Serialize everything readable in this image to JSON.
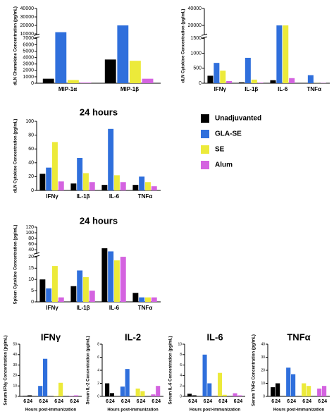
{
  "chart_data": [
    {
      "type": "bar",
      "y_label": "dLN Chemokine Concentration (pg/mL)",
      "categories": [
        "MIP-1α",
        "MIP-1β"
      ],
      "series": [
        {
          "name": "Unadjuvanted",
          "color": "#000000",
          "values": [
            700,
            3700
          ]
        },
        {
          "name": "GLA-SE",
          "color": "#2f6fdc",
          "values": [
            12000,
            20000
          ]
        },
        {
          "name": "SE",
          "color": "#ecea3a",
          "values": [
            500,
            3500
          ]
        },
        {
          "name": "Alum",
          "color": "#d463e0",
          "values": [
            100,
            700
          ]
        }
      ],
      "ylim": [
        0,
        40000
      ],
      "axis_break": [
        7000,
        10000
      ],
      "yticks": [
        0,
        1000,
        2000,
        3000,
        4000,
        5000,
        6000,
        7000,
        10000,
        20000,
        30000,
        40000
      ]
    },
    {
      "type": "bar",
      "y_label": "dLN Cytokine Concentration (pg/mL)",
      "categories": [
        "IFNγ",
        "IL-1β",
        "IL-6",
        "TNFα"
      ],
      "series": [
        {
          "name": "Unadjuvanted",
          "color": "#000000",
          "values": [
            250,
            30,
            100,
            10
          ]
        },
        {
          "name": "GLA-SE",
          "color": "#2f6fdc",
          "values": [
            680,
            850,
            20000,
            270
          ]
        },
        {
          "name": "SE",
          "color": "#ecea3a",
          "values": [
            420,
            120,
            20000,
            5
          ]
        },
        {
          "name": "Alum",
          "color": "#d463e0",
          "values": [
            70,
            20,
            170,
            10
          ]
        }
      ],
      "ylim": [
        0,
        40000
      ],
      "axis_break": [
        1500,
        10000
      ],
      "yticks": [
        0,
        500,
        1000,
        1500,
        20000,
        40000
      ]
    },
    {
      "type": "bar",
      "title": "24 hours",
      "y_label": "dLN Cytokine Concentration (pg/mL)",
      "categories": [
        "IFNγ",
        "IL-1β",
        "IL-6",
        "TNFα"
      ],
      "series": [
        {
          "name": "Unadjuvanted",
          "color": "#000000",
          "values": [
            24,
            10,
            8,
            8
          ]
        },
        {
          "name": "GLA-SE",
          "color": "#2f6fdc",
          "values": [
            33,
            47,
            89,
            20
          ]
        },
        {
          "name": "SE",
          "color": "#ecea3a",
          "values": [
            70,
            25,
            22,
            12
          ]
        },
        {
          "name": "Alum",
          "color": "#d463e0",
          "values": [
            13,
            12,
            12,
            6
          ]
        }
      ],
      "ylim": [
        0,
        100
      ],
      "yticks": [
        0,
        20,
        40,
        60,
        80,
        100
      ],
      "legend": "right"
    },
    {
      "type": "bar",
      "title": "24 hours",
      "y_label": "Spleen Cytokine Concentration (pg/mL)",
      "categories": [
        "IFNγ",
        "IL-1β",
        "IL-6",
        "TNFα"
      ],
      "series": [
        {
          "name": "Unadjuvanted",
          "color": "#000000",
          "values": [
            10,
            7,
            45,
            4
          ]
        },
        {
          "name": "GLA-SE",
          "color": "#2f6fdc",
          "values": [
            6,
            14,
            34,
            2
          ]
        },
        {
          "name": "SE",
          "color": "#ecea3a",
          "values": [
            16,
            11,
            18.5,
            2
          ]
        },
        {
          "name": "Alum",
          "color": "#d463e0",
          "values": [
            2,
            5,
            20.5,
            2
          ]
        }
      ],
      "ylim": [
        0,
        120
      ],
      "axis_break": [
        20,
        30
      ],
      "yticks": [
        0,
        5,
        10,
        15,
        20,
        40,
        60,
        80,
        100,
        120
      ]
    },
    {
      "type": "bar",
      "title": "IFNγ",
      "y_label": "Serum IFNγ Concentration (pg/mL)",
      "x_label": "Hours post-immunization",
      "grouping": "series",
      "categories": [
        "6",
        "24"
      ],
      "series": [
        {
          "name": "Unadjuvanted",
          "color": "#000000",
          "values": [
            0.5,
            1
          ]
        },
        {
          "name": "GLA-SE",
          "color": "#2f6fdc",
          "values": [
            10,
            36
          ]
        },
        {
          "name": "SE",
          "color": "#ecea3a",
          "values": [
            0.5,
            13
          ]
        },
        {
          "name": "Alum",
          "color": "#d463e0",
          "values": [
            0.5,
            1
          ]
        }
      ],
      "ylim": [
        0,
        50
      ],
      "yticks": [
        0,
        10,
        20,
        30,
        40,
        50
      ]
    },
    {
      "type": "bar",
      "title": "IL-2",
      "y_label": "Serum IL-2 Concentration (pg/mL)",
      "x_label": "Hours post-immunization",
      "grouping": "series",
      "categories": [
        "6",
        "24"
      ],
      "series": [
        {
          "name": "Unadjuvanted",
          "color": "#000000",
          "values": [
            2,
            0.5
          ]
        },
        {
          "name": "GLA-SE",
          "color": "#2f6fdc",
          "values": [
            1.5,
            4.2
          ]
        },
        {
          "name": "SE",
          "color": "#ecea3a",
          "values": [
            1.2,
            0.8
          ]
        },
        {
          "name": "Alum",
          "color": "#d463e0",
          "values": [
            0.3,
            1.6
          ]
        }
      ],
      "ylim": [
        0,
        8
      ],
      "yticks": [
        0,
        2,
        4,
        6,
        8
      ]
    },
    {
      "type": "bar",
      "title": "IL-6",
      "y_label": "Serum IL-6 Concentration (pg/mL)",
      "x_label": "Hours post-immunization",
      "grouping": "series",
      "categories": [
        "6",
        "24"
      ],
      "series": [
        {
          "name": "Unadjuvanted",
          "color": "#000000",
          "values": [
            0.5,
            0.2
          ]
        },
        {
          "name": "GLA-SE",
          "color": "#2f6fdc",
          "values": [
            8,
            2.5
          ]
        },
        {
          "name": "SE",
          "color": "#ecea3a",
          "values": [
            4.5,
            0.3
          ]
        },
        {
          "name": "Alum",
          "color": "#d463e0",
          "values": [
            0.6,
            0.2
          ]
        }
      ],
      "ylim": [
        0,
        10
      ],
      "yticks": [
        0,
        2,
        4,
        6,
        8,
        10
      ]
    },
    {
      "type": "bar",
      "title": "TNFα",
      "y_label": "Serum TNFα Concentration (pg/mL)",
      "x_label": "Hours post-immunization",
      "grouping": "series",
      "categories": [
        "6",
        "24"
      ],
      "series": [
        {
          "name": "Unadjuvanted",
          "color": "#000000",
          "values": [
            7,
            10
          ]
        },
        {
          "name": "GLA-SE",
          "color": "#2f6fdc",
          "values": [
            22,
            17
          ]
        },
        {
          "name": "SE",
          "color": "#ecea3a",
          "values": [
            10,
            8
          ]
        },
        {
          "name": "Alum",
          "color": "#d463e0",
          "values": [
            6,
            8
          ]
        }
      ],
      "ylim": [
        0,
        40
      ],
      "yticks": [
        0,
        10,
        20,
        30,
        40
      ]
    }
  ]
}
